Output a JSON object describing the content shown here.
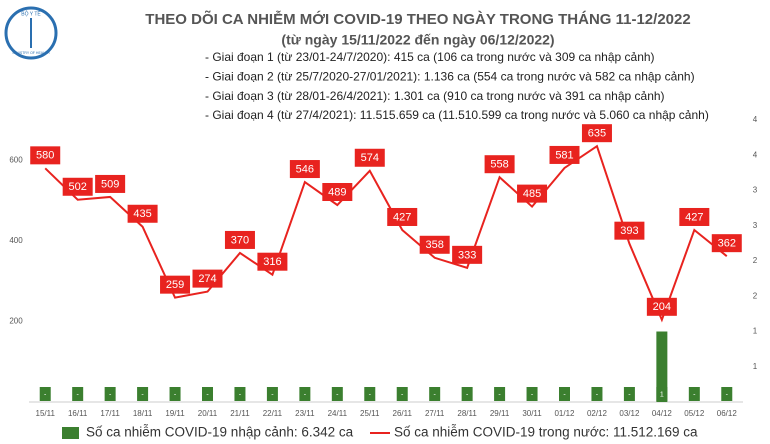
{
  "chart_data": {
    "type": "combo",
    "title": "THEO DÕI CA NHIỄM MỚI COVID-19 THEO NGÀY TRONG THÁNG 11-12/2022",
    "subtitle": "(từ ngày 15/11/2022 đến ngày 06/12/2022)",
    "logo": {
      "top": "BỘ Y TẾ",
      "bottom": "MINISTRY OF HEALTH"
    },
    "annotations": [
      "- Giai đoạn 1 (từ 23/01-24/7/2020): 415 ca (106 ca trong nước và 309 ca nhập cảnh)",
      "- Giai đoạn 2 (từ 25/7/2020-27/01/2021): 1.136 ca (554 ca trong nước và 582 ca nhập cảnh)",
      "- Giai đoạn 3 (từ 28/01-26/4/2021): 1.301 ca (910 ca trong nước và 391 ca nhập cảnh)",
      "- Giai đoạn 4 (từ 27/4/2021): 11.515.659 ca (11.510.599 ca trong nước và 5.060 ca nhập cảnh)"
    ],
    "categories": [
      "15/11",
      "16/11",
      "17/11",
      "18/11",
      "19/11",
      "20/11",
      "21/11",
      "22/11",
      "23/11",
      "24/11",
      "25/11",
      "26/11",
      "27/11",
      "28/11",
      "29/11",
      "30/11",
      "01/12",
      "02/12",
      "03/12",
      "04/12",
      "05/12",
      "06/12"
    ],
    "series": [
      {
        "name": "Số ca nhiễm COVID-19 nhập cảnh: 6.342 ca",
        "type": "bar",
        "axis": "y2",
        "color": "#3b7f2f",
        "values": [
          0,
          0,
          0,
          0,
          0,
          0,
          0,
          0,
          0,
          0,
          0,
          0,
          0,
          0,
          0,
          0,
          0,
          0,
          0,
          1,
          0,
          0
        ],
        "value_labels": [
          "-",
          "-",
          "-",
          "-",
          "-",
          "-",
          "-",
          "-",
          "-",
          "-",
          "-",
          "-",
          "-",
          "-",
          "-",
          "-",
          "-",
          "-",
          "-",
          "1",
          "-",
          "-"
        ]
      },
      {
        "name": "Số ca nhiễm COVID-19 trong nước: 11.512.169 ca",
        "type": "line",
        "color": "#e8231f",
        "values": [
          580,
          502,
          509,
          435,
          259,
          274,
          370,
          316,
          546,
          489,
          574,
          427,
          358,
          333,
          558,
          485,
          581,
          635,
          393,
          204,
          427,
          362
        ]
      }
    ],
    "ylim": [
      0,
      700
    ],
    "yticks": [
      200,
      400,
      600
    ],
    "y2lim": [
      0,
      4
    ],
    "y2ticks": [
      {
        "value": 0.5,
        "label": "1"
      },
      1,
      {
        "value": 1.5,
        "label": "2"
      },
      2,
      {
        "value": 2.5,
        "label": "3"
      },
      3,
      {
        "value": 3.5,
        "label": "4"
      },
      4
    ],
    "grid": false,
    "legend": "bottom"
  }
}
